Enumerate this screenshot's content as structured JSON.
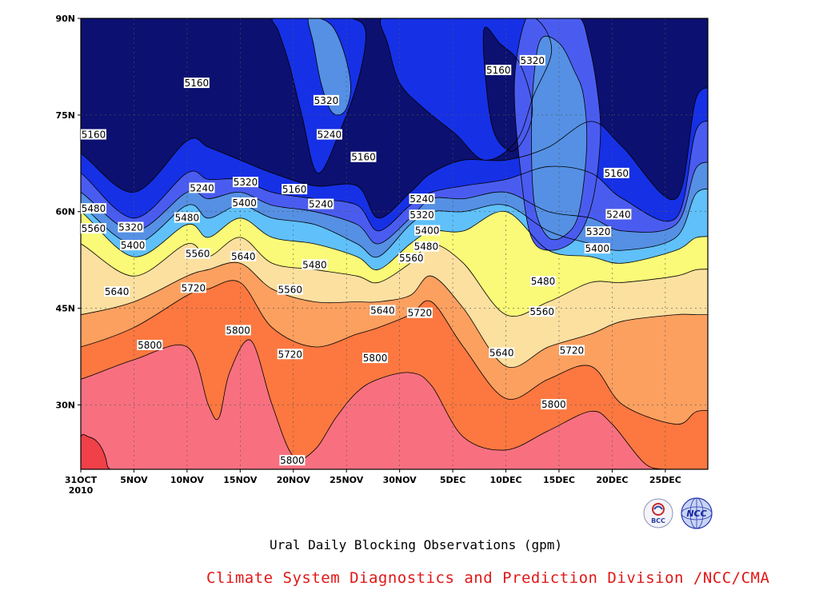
{
  "title": "Ural Daily Blocking Observations (gpm)",
  "footer": "Climate System Diagnostics and Prediction Division /NCC/CMA",
  "logos": [
    "BCC",
    "NCC"
  ],
  "colors": {
    "5160": "#0c1070",
    "5240": "#1630e6",
    "5320": "#4a5cf0",
    "5400": "#5590e4",
    "5480": "#60c0fa",
    "5560": "#fafa78",
    "5640": "#fce0a0",
    "5720": "#fca060",
    "5800": "#fc7840",
    "5880": "#f87080",
    "above": "#f04048"
  },
  "chart_data": {
    "type": "contour",
    "title": "Ural Daily Blocking Observations (gpm)",
    "xlabel": "",
    "ylabel": "",
    "x_ticks": [
      "31OCT\n2010",
      "5NOV",
      "10NOV",
      "15NOV",
      "20NOV",
      "25NOV",
      "30NOV",
      "5DEC",
      "10DEC",
      "15DEC",
      "20DEC",
      "25DEC"
    ],
    "y_ticks": [
      "30N",
      "45N",
      "60N",
      "75N",
      "90N"
    ],
    "xlim": [
      "2010-10-31",
      "2010-12-29"
    ],
    "ylim": [
      20,
      90
    ],
    "contour_levels": [
      5160,
      5240,
      5320,
      5400,
      5480,
      5560,
      5640,
      5720,
      5800
    ],
    "grid": true,
    "isolines": [
      {
        "level": 5160,
        "x": [
          0,
          5,
          10,
          12,
          15,
          18,
          22,
          26,
          28,
          31,
          33,
          36,
          40,
          44,
          48,
          51,
          56,
          58
        ],
        "lat": [
          69,
          63,
          71,
          70,
          68,
          66,
          64,
          64,
          59,
          63,
          66,
          68,
          68,
          70,
          74,
          70,
          62,
          78
        ]
      },
      {
        "level": 5240,
        "x": [
          0,
          5,
          10,
          12,
          15,
          18,
          22,
          26,
          28,
          31,
          33,
          36,
          40,
          44,
          48,
          51,
          56,
          58
        ],
        "lat": [
          66,
          59,
          66,
          65,
          65,
          63,
          62,
          61,
          57,
          61,
          63,
          64,
          65,
          67,
          66,
          62,
          59,
          73
        ]
      },
      {
        "level": 5320,
        "x": [
          0,
          5,
          10,
          12,
          15,
          18,
          22,
          26,
          28,
          31,
          33,
          36,
          40,
          44,
          48,
          51,
          56,
          58
        ],
        "lat": [
          63,
          57,
          63,
          62,
          63,
          61,
          60,
          58,
          55,
          59,
          62,
          62,
          63,
          60,
          59,
          57,
          58,
          67
        ]
      },
      {
        "level": 5400,
        "x": [
          0,
          5,
          10,
          12,
          15,
          18,
          22,
          26,
          28,
          31,
          33,
          36,
          40,
          44,
          48,
          51,
          56,
          58
        ],
        "lat": [
          61,
          55,
          61,
          59,
          61,
          59,
          58,
          55,
          53,
          58,
          60,
          60,
          61,
          57,
          55,
          54,
          56,
          63
        ]
      },
      {
        "level": 5480,
        "x": [
          0,
          5,
          10,
          12,
          15,
          18,
          22,
          26,
          28,
          31,
          33,
          36,
          40,
          44,
          48,
          51,
          56,
          58
        ],
        "lat": [
          60,
          53,
          58,
          56,
          59,
          56,
          55,
          53,
          51,
          55,
          57,
          57,
          60,
          54,
          53,
          52,
          54,
          56
        ]
      },
      {
        "level": 5560,
        "x": [
          0,
          5,
          10,
          12,
          15,
          18,
          22,
          26,
          28,
          31,
          33,
          36,
          40,
          44,
          48,
          51,
          56,
          58
        ],
        "lat": [
          55,
          50,
          55,
          53,
          56,
          52,
          51,
          50,
          49,
          52,
          55,
          52,
          44,
          46,
          49,
          49,
          50,
          51
        ]
      },
      {
        "level": 5640,
        "x": [
          0,
          5,
          10,
          12,
          15,
          18,
          22,
          26,
          28,
          31,
          33,
          36,
          40,
          44,
          48,
          51,
          56,
          58
        ],
        "lat": [
          44,
          46,
          50,
          51,
          52,
          48,
          46,
          46,
          46,
          47,
          50,
          45,
          36,
          39,
          41,
          43,
          44,
          44
        ]
      },
      {
        "level": 5720,
        "x": [
          0,
          5,
          10,
          12,
          15,
          18,
          22,
          26,
          28,
          31,
          33,
          36,
          40,
          44,
          48,
          51,
          56,
          58
        ],
        "lat": [
          39,
          42,
          47,
          48,
          49,
          42,
          39,
          41,
          42,
          44,
          46,
          39,
          31,
          34,
          36,
          30,
          27,
          29
        ]
      },
      {
        "level": 5800,
        "x": [
          0,
          5,
          10,
          12,
          13,
          14,
          16,
          18,
          20,
          22,
          24,
          26,
          28,
          31,
          33,
          36,
          40,
          44,
          48,
          50,
          53,
          55,
          58
        ],
        "lat": [
          34,
          37,
          39,
          30,
          28,
          35,
          40,
          30,
          22,
          23,
          28,
          32,
          34,
          35,
          33,
          25,
          23,
          26,
          29,
          27,
          21,
          20,
          20
        ]
      }
    ],
    "contour_labels": [
      {
        "value": "5160",
        "x": 0.1,
        "lat": 72
      },
      {
        "value": "5160",
        "x": 10.9,
        "lat": 80
      },
      {
        "value": "5160",
        "x": 20.1,
        "lat": 63.5
      },
      {
        "value": "5160",
        "x": 26.6,
        "lat": 68.5
      },
      {
        "value": "5160",
        "x": 39.3,
        "lat": 82
      },
      {
        "value": "5160",
        "x": 50.4,
        "lat": 66
      },
      {
        "value": "5240",
        "x": 11.4,
        "lat": 63.7
      },
      {
        "value": "5240",
        "x": 23.4,
        "lat": 72
      },
      {
        "value": "5240",
        "x": 22.6,
        "lat": 61.2
      },
      {
        "value": "5240",
        "x": 32.1,
        "lat": 62
      },
      {
        "value": "5240",
        "x": 50.6,
        "lat": 59.6
      },
      {
        "value": "5320",
        "x": 4.7,
        "lat": 57.6
      },
      {
        "value": "5320",
        "x": 15.5,
        "lat": 64.6
      },
      {
        "value": "5320",
        "x": 23.1,
        "lat": 77.3
      },
      {
        "value": "5320",
        "x": 32.1,
        "lat": 59.5
      },
      {
        "value": "5320",
        "x": 42.5,
        "lat": 83.5
      },
      {
        "value": "5320",
        "x": 48.7,
        "lat": 56.9
      },
      {
        "value": "5400",
        "x": 4.9,
        "lat": 54.8
      },
      {
        "value": "5400",
        "x": 15.4,
        "lat": 61.4
      },
      {
        "value": "5400",
        "x": 32.6,
        "lat": 57.1
      },
      {
        "value": "5400",
        "x": 48.6,
        "lat": 54.3
      },
      {
        "value": "5480",
        "x": -0.2,
        "lat": 60.5
      },
      {
        "value": "5480",
        "x": 10.0,
        "lat": 59.1
      },
      {
        "value": "5480",
        "x": 22.0,
        "lat": 51.8
      },
      {
        "value": "5480",
        "x": 32.5,
        "lat": 54.6
      },
      {
        "value": "5480",
        "x": 43.5,
        "lat": 49.2
      },
      {
        "value": "5560",
        "x": -0.2,
        "lat": 57.4
      },
      {
        "value": "5560",
        "x": 11.0,
        "lat": 53.5
      },
      {
        "value": "5560",
        "x": 19.7,
        "lat": 47.9
      },
      {
        "value": "5560",
        "x": 31.1,
        "lat": 52.8
      },
      {
        "value": "5560",
        "x": 43.4,
        "lat": 44.5
      },
      {
        "value": "5640",
        "x": 3.4,
        "lat": 47.6
      },
      {
        "value": "5640",
        "x": 15.3,
        "lat": 53.1
      },
      {
        "value": "5640",
        "x": 28.4,
        "lat": 44.7
      },
      {
        "value": "5640",
        "x": 39.6,
        "lat": 38.1
      },
      {
        "value": "5720",
        "x": 10.6,
        "lat": 48.2
      },
      {
        "value": "5720",
        "x": 19.7,
        "lat": 37.9
      },
      {
        "value": "5720",
        "x": 31.9,
        "lat": 44.3
      },
      {
        "value": "5720",
        "x": 46.2,
        "lat": 38.5
      },
      {
        "value": "5800",
        "x": 6.5,
        "lat": 39.3
      },
      {
        "value": "5800",
        "x": 14.8,
        "lat": 41.6
      },
      {
        "value": "5800",
        "x": 27.7,
        "lat": 37.3
      },
      {
        "value": "5800",
        "x": 19.9,
        "lat": 21.4
      },
      {
        "value": "5800",
        "x": 44.5,
        "lat": 30.1
      }
    ],
    "blobs": [
      {
        "fill": "5240",
        "x": [
          18.1,
          20.7,
          22.8,
          25.5,
          26.8,
          26.2,
          24.5,
          22.3,
          20.8,
          19.6,
          18.6
        ],
        "lat": [
          90,
          90,
          90,
          90,
          88,
          81,
          73,
          66,
          75,
          83,
          88
        ]
      },
      {
        "fill": "5400",
        "x": [
          21.4,
          22.5,
          23.8,
          24.9,
          25.4,
          24.8,
          23.6,
          22.6,
          21.9
        ],
        "lat": [
          90,
          90,
          88.5,
          84,
          79,
          75.5,
          75.5,
          80,
          86
        ]
      },
      {
        "fill": "5240",
        "x": [
          28.3,
          31.4,
          33.8,
          37.0,
          39.8,
          42.8,
          44.3,
          42.6,
          41.0,
          38.0,
          35.3,
          32.3,
          30.0,
          28.9
        ],
        "lat": [
          90,
          90,
          90,
          90,
          90,
          90,
          85,
          78,
          71,
          68,
          72,
          76,
          80,
          86
        ]
      },
      {
        "fill": "5160",
        "x": [
          37.9,
          39.5,
          41.3,
          42.5,
          41.6,
          40.2,
          38.6
        ],
        "lat": [
          88,
          86,
          83,
          76,
          71,
          69.5,
          74
        ]
      },
      {
        "fill": "5320",
        "x": [
          41.9,
          43.5,
          45.1,
          47.0,
          47.8,
          48.5,
          48.9,
          48.2,
          46.7,
          44.3,
          42.4,
          41.4,
          40.8
        ],
        "lat": [
          90,
          90,
          90,
          90,
          86,
          80,
          72,
          62,
          56,
          54,
          56,
          66,
          80
        ]
      },
      {
        "fill": "5400",
        "x": [
          43.4,
          45.1,
          46.4,
          47.3,
          47.6,
          46.9,
          45.7,
          44.0,
          42.7,
          42.4,
          42.7
        ],
        "lat": [
          87,
          86,
          82,
          78,
          70,
          60,
          56.5,
          56,
          61,
          72,
          82
        ]
      },
      {
        "fill": "above",
        "x": [
          0,
          0.8,
          1.4,
          1.9,
          2.3,
          2.5,
          2.5,
          0
        ],
        "lat": [
          25,
          25,
          24.5,
          23.5,
          22,
          20.5,
          20,
          20
        ]
      }
    ]
  }
}
